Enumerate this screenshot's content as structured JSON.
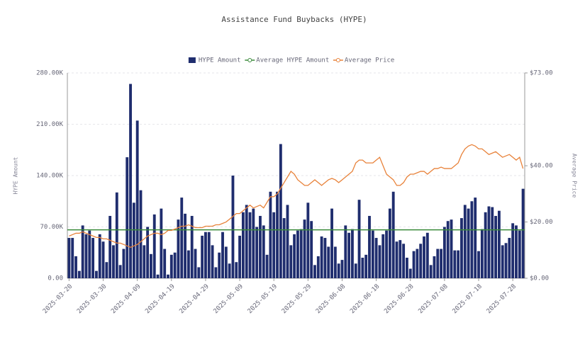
{
  "chart_data": {
    "type": "bar-line",
    "title": "Assistance Fund Buybacks (HYPE)",
    "y_label": "HYPE Amount",
    "y2_label": "Average Price",
    "legend": "top",
    "grid": true,
    "categories": [
      "2025-03-20",
      null,
      null,
      null,
      null,
      null,
      null,
      null,
      null,
      null,
      "2025-03-30",
      null,
      null,
      null,
      null,
      null,
      null,
      null,
      null,
      null,
      "2025-04-09",
      null,
      null,
      null,
      null,
      null,
      null,
      null,
      null,
      null,
      "2025-04-19",
      null,
      null,
      null,
      null,
      null,
      null,
      null,
      null,
      null,
      "2025-04-29",
      null,
      null,
      null,
      null,
      null,
      null,
      null,
      null,
      null,
      "2025-05-09",
      null,
      null,
      null,
      null,
      null,
      null,
      null,
      null,
      null,
      "2025-05-19",
      null,
      null,
      null,
      null,
      null,
      null,
      null,
      null,
      null,
      "2025-05-29",
      null,
      null,
      null,
      null,
      null,
      null,
      null,
      null,
      null,
      "2025-06-08",
      null,
      null,
      null,
      null,
      null,
      null,
      null,
      null,
      null,
      "2025-06-18",
      null,
      null,
      null,
      null,
      null,
      null,
      null,
      null,
      null,
      "2025-06-28",
      null,
      null,
      null,
      null,
      null,
      null,
      null,
      null,
      null,
      "2025-07-08",
      null,
      null,
      null,
      null,
      null,
      null,
      null,
      null,
      null,
      "2025-07-18",
      null,
      null,
      null,
      null,
      null,
      null,
      null,
      null,
      null,
      "2025-07-28",
      null,
      null,
      null
    ],
    "ylim": [
      0,
      280000
    ],
    "yticks": [
      {
        "value": 0,
        "label": "0.00"
      },
      {
        "value": 70000,
        "label": "70.00K"
      },
      {
        "value": 140000,
        "label": "140.00K"
      },
      {
        "value": 210000,
        "label": "210.00K"
      },
      {
        "value": 280000,
        "label": "280.00K"
      }
    ],
    "y2lim": [
      0,
      73
    ],
    "y2ticks": [
      {
        "value": 0,
        "label": "$0.00"
      },
      {
        "value": 20,
        "label": "$20.00"
      },
      {
        "value": 40,
        "label": "$40.00"
      },
      {
        "value": 73,
        "label": "$73.00"
      }
    ],
    "series": [
      {
        "name": "HYPE Amount",
        "kind": "bar",
        "color": "#1f2d6e",
        "values": [
          55000,
          55000,
          30000,
          10000,
          72000,
          60000,
          65000,
          55000,
          10000,
          60000,
          50000,
          22000,
          85000,
          45000,
          117000,
          18000,
          40000,
          165000,
          265000,
          103000,
          215000,
          120000,
          45000,
          70000,
          33000,
          87000,
          5000,
          95000,
          40000,
          5000,
          32000,
          35000,
          80000,
          110000,
          88000,
          38000,
          85000,
          40000,
          15000,
          58000,
          63000,
          63000,
          45000,
          15000,
          35000,
          63000,
          43000,
          20000,
          140000,
          22000,
          58000,
          90000,
          100000,
          90000,
          95000,
          70000,
          85000,
          72000,
          32000,
          118000,
          90000,
          118000,
          183000,
          82000,
          100000,
          45000,
          60000,
          65000,
          67000,
          80000,
          103000,
          78000,
          18000,
          30000,
          57000,
          55000,
          43000,
          95000,
          43000,
          20000,
          25000,
          72000,
          62000,
          67000,
          20000,
          107000,
          28000,
          32000,
          85000,
          65000,
          55000,
          45000,
          60000,
          65000,
          95000,
          118000,
          50000,
          52000,
          47000,
          28000,
          13000,
          37000,
          40000,
          47000,
          57000,
          62000,
          18000,
          30000,
          40000,
          40000,
          70000,
          78000,
          80000,
          38000,
          38000,
          82000,
          100000,
          95000,
          105000,
          110000,
          37000,
          67000,
          90000,
          98000,
          97000,
          85000,
          92000,
          45000,
          48000,
          55000,
          75000,
          72000,
          65000,
          122000
        ]
      },
      {
        "name": "Average HYPE Amount",
        "kind": "hline",
        "color": "#3a8a3a",
        "value": 66000
      },
      {
        "name": "Average Price",
        "kind": "line",
        "axis": "y2",
        "color": "#e8823a",
        "values": [
          15,
          15.5,
          16,
          16,
          16.5,
          16,
          15.5,
          15,
          14.5,
          14.5,
          14,
          14,
          13.5,
          13,
          12.5,
          12.5,
          12,
          11.5,
          11,
          11.5,
          12,
          13,
          14,
          15,
          15.5,
          16,
          16,
          15.5,
          16,
          17,
          17,
          17.5,
          18,
          18.5,
          18.5,
          19,
          18.5,
          18,
          18,
          18,
          18.5,
          18.5,
          18.5,
          19,
          19,
          19.5,
          20,
          21,
          22,
          23,
          23,
          24,
          25,
          26,
          25,
          25.5,
          26,
          25,
          27,
          29,
          29,
          30,
          32,
          34,
          36,
          38,
          37,
          35,
          34,
          33,
          33,
          34,
          35,
          34,
          33,
          34,
          35,
          35.5,
          35,
          34,
          35,
          36,
          37,
          38,
          41,
          42,
          42,
          41,
          41,
          41,
          42,
          43,
          40,
          37,
          36,
          35,
          33,
          33,
          34,
          36,
          37,
          37,
          37.5,
          38,
          38,
          37,
          38,
          39,
          39,
          39.5,
          39,
          39,
          39,
          40,
          41,
          44,
          46,
          47,
          47.5,
          47,
          46,
          46,
          45,
          44,
          44.5,
          45,
          44,
          43,
          43.5,
          44,
          43,
          42,
          43,
          39
        ]
      }
    ]
  }
}
